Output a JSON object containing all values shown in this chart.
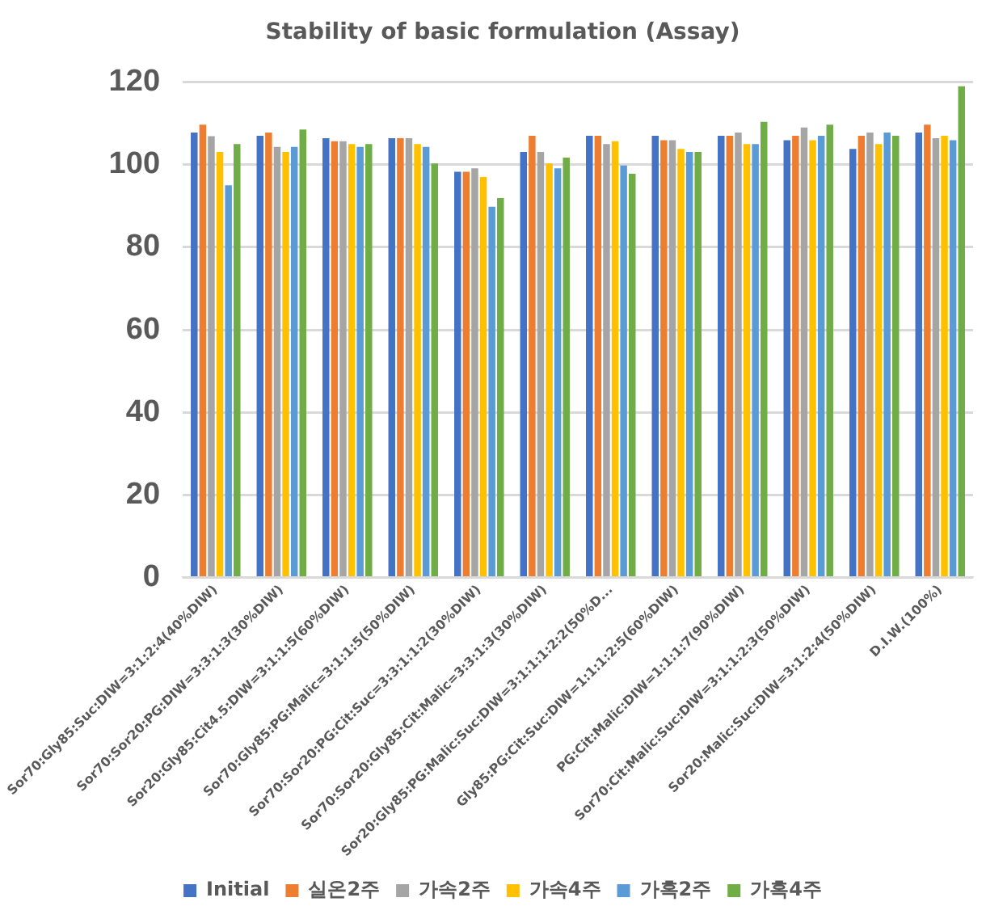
{
  "chart_data": {
    "type": "bar",
    "title": "Stability of basic formulation (Assay)",
    "categories": [
      "Sor70:Gly85:Suc:DIW=3:1:2:4(40%DIW)",
      "Sor70:Sor20:PG:DIW=3:3:1:3(30%DIW)",
      "Sor20:Gly85:Cit4.5:DIW=3:1:1:5(60%DIW)",
      "Sor70:Gly85:PG:Malic=3:1:1:5(50%DIW)",
      "Sor70:Sor20:PG:Cit:Suc=3:3:1:1:2(30%DIW)",
      "Sor70:Sor20:Gly85:Cit:Malic=3:3:1:3(30%DIW)",
      "Sor20:Gly85:PG:Malic:Suc:DIW=3:1:1:1:2:2(50%D...",
      "Gly85:PG:Cit:Suc:DIW=1:1:1:2:5(60%DIW)",
      "PG:Cit:Malic:DIW=1:1:1:7(90%DIW)",
      "Sor70:Cit:Malic:Suc:DIW=3:1:1:2:3(50%DIW)",
      "Sor20:Malic:Suc:DIW=3:1:2:4(50%DIW)",
      "D.I.W.(100%)"
    ],
    "series": [
      {
        "name": "Initial",
        "color": "#4472c4",
        "values": [
          107.8,
          107,
          106.4,
          106.4,
          98.3,
          103.1,
          107,
          107,
          107,
          105.9,
          103.8,
          107.8
        ]
      },
      {
        "name": "실온2주",
        "color": "#ed7d31",
        "values": [
          109.7,
          107.8,
          105.7,
          106.4,
          98.3,
          107,
          107,
          105.9,
          107,
          107,
          107,
          109.7
        ]
      },
      {
        "name": "가속2주",
        "color": "#a5a5a5",
        "values": [
          106.9,
          104.3,
          105.7,
          106.4,
          99.1,
          103.1,
          105,
          105.9,
          107.8,
          109,
          107.8,
          106.4
        ]
      },
      {
        "name": "가속4주",
        "color": "#ffc000",
        "values": [
          103.1,
          103.1,
          105,
          105,
          97,
          100.3,
          105.7,
          103.8,
          105,
          105.9,
          105,
          107
        ]
      },
      {
        "name": "가혹2주",
        "color": "#5b9bd5",
        "values": [
          95,
          104.3,
          104.3,
          104.3,
          89.8,
          99.1,
          99.8,
          103.1,
          105,
          107,
          107.8,
          105.9
        ]
      },
      {
        "name": "가혹4주",
        "color": "#70ad47",
        "values": [
          105,
          108.5,
          105,
          100.3,
          91.9,
          101.7,
          97.8,
          103.1,
          110.4,
          109.7,
          107,
          119
        ]
      }
    ],
    "ylim": [
      0,
      120
    ],
    "yticks": [
      0,
      20,
      40,
      60,
      80,
      100,
      120
    ],
    "grid": "y",
    "legend": "bottom"
  }
}
